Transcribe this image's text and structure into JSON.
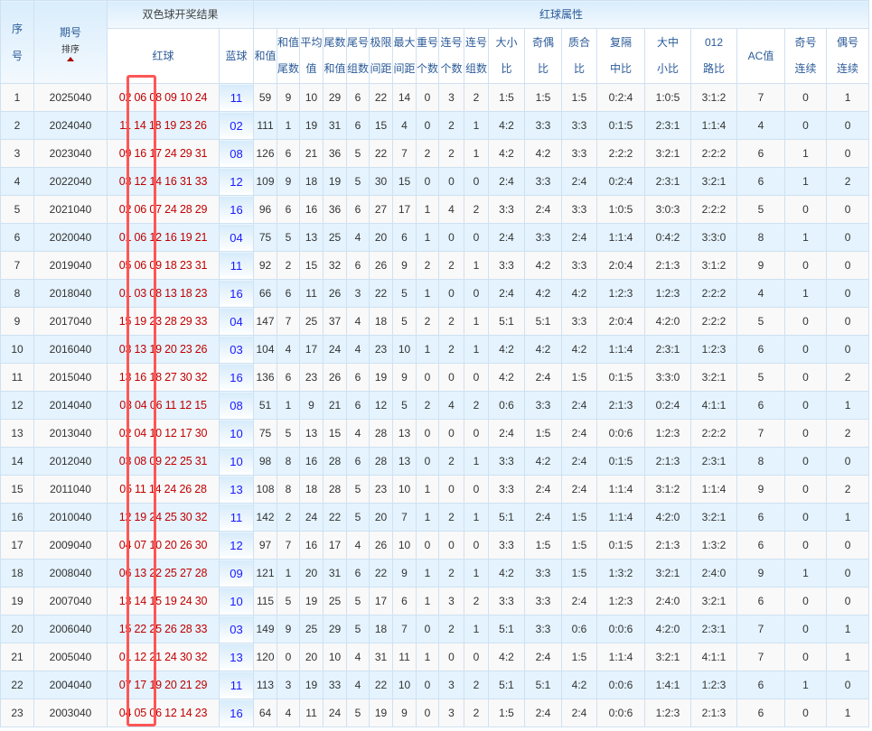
{
  "header": {
    "seq_line1": "序",
    "seq_line2": "号",
    "issue": "期号",
    "sort": "排序",
    "draw_result": "双色球开奖结果",
    "red_attr": "红球属性",
    "red_ball": "红球",
    "blue_ball": "蓝球",
    "sum": "和值",
    "cols": [
      [
        "和值",
        "尾数"
      ],
      [
        "平均",
        "值"
      ],
      [
        "尾数",
        "和值"
      ],
      [
        "尾号",
        "组数"
      ],
      [
        "极限",
        "间距"
      ],
      [
        "最大",
        "间距"
      ],
      [
        "重号",
        "个数"
      ],
      [
        "连号",
        "个数"
      ],
      [
        "连号",
        "组数"
      ],
      [
        "大小",
        "比"
      ],
      [
        "奇偶",
        "比"
      ],
      [
        "质合",
        "比"
      ],
      [
        "复隔",
        "中比"
      ],
      [
        "大中",
        "小比"
      ],
      [
        "012",
        "路比"
      ],
      [
        "AC值",
        ""
      ],
      [
        "奇号",
        "连续"
      ],
      [
        "偶号",
        "连续"
      ]
    ]
  },
  "colors": {
    "red_ball": "#c00000",
    "blue_ball": "#1a1aff",
    "highlight": "#ff5656",
    "stripe": "#e4f3fd"
  },
  "rows": [
    {
      "n": "1",
      "issue": "2025040",
      "red": [
        "02",
        "06",
        "08",
        "09",
        "10",
        "24"
      ],
      "blue": "11",
      "v": [
        "59",
        "9",
        "10",
        "29",
        "6",
        "22",
        "14",
        "0",
        "3",
        "2",
        "1:5",
        "1:5",
        "1:5",
        "0:2:4",
        "1:0:5",
        "3:1:2",
        "7",
        "0",
        "1"
      ]
    },
    {
      "n": "2",
      "issue": "2024040",
      "red": [
        "11",
        "14",
        "18",
        "19",
        "23",
        "26"
      ],
      "blue": "02",
      "v": [
        "111",
        "1",
        "19",
        "31",
        "6",
        "15",
        "4",
        "0",
        "2",
        "1",
        "4:2",
        "3:3",
        "3:3",
        "0:1:5",
        "2:3:1",
        "1:1:4",
        "4",
        "0",
        "0"
      ]
    },
    {
      "n": "3",
      "issue": "2023040",
      "red": [
        "09",
        "16",
        "17",
        "24",
        "29",
        "31"
      ],
      "blue": "08",
      "v": [
        "126",
        "6",
        "21",
        "36",
        "5",
        "22",
        "7",
        "2",
        "2",
        "1",
        "4:2",
        "4:2",
        "3:3",
        "2:2:2",
        "3:2:1",
        "2:2:2",
        "6",
        "1",
        "0"
      ]
    },
    {
      "n": "4",
      "issue": "2022040",
      "red": [
        "03",
        "12",
        "14",
        "16",
        "31",
        "33"
      ],
      "blue": "12",
      "v": [
        "109",
        "9",
        "18",
        "19",
        "5",
        "30",
        "15",
        "0",
        "0",
        "0",
        "2:4",
        "3:3",
        "2:4",
        "0:2:4",
        "2:3:1",
        "3:2:1",
        "6",
        "1",
        "2"
      ]
    },
    {
      "n": "5",
      "issue": "2021040",
      "red": [
        "02",
        "06",
        "07",
        "24",
        "28",
        "29"
      ],
      "blue": "16",
      "v": [
        "96",
        "6",
        "16",
        "36",
        "6",
        "27",
        "17",
        "1",
        "4",
        "2",
        "3:3",
        "2:4",
        "3:3",
        "1:0:5",
        "3:0:3",
        "2:2:2",
        "5",
        "0",
        "0"
      ]
    },
    {
      "n": "6",
      "issue": "2020040",
      "red": [
        "01",
        "06",
        "12",
        "16",
        "19",
        "21"
      ],
      "blue": "04",
      "v": [
        "75",
        "5",
        "13",
        "25",
        "4",
        "20",
        "6",
        "1",
        "0",
        "0",
        "2:4",
        "3:3",
        "2:4",
        "1:1:4",
        "0:4:2",
        "3:3:0",
        "8",
        "1",
        "0"
      ]
    },
    {
      "n": "7",
      "issue": "2019040",
      "red": [
        "05",
        "06",
        "09",
        "18",
        "23",
        "31"
      ],
      "blue": "11",
      "v": [
        "92",
        "2",
        "15",
        "32",
        "6",
        "26",
        "9",
        "2",
        "2",
        "1",
        "3:3",
        "4:2",
        "3:3",
        "2:0:4",
        "2:1:3",
        "3:1:2",
        "9",
        "0",
        "0"
      ]
    },
    {
      "n": "8",
      "issue": "2018040",
      "red": [
        "01",
        "03",
        "08",
        "13",
        "18",
        "23"
      ],
      "blue": "16",
      "v": [
        "66",
        "6",
        "11",
        "26",
        "3",
        "22",
        "5",
        "1",
        "0",
        "0",
        "2:4",
        "4:2",
        "4:2",
        "1:2:3",
        "1:2:3",
        "2:2:2",
        "4",
        "1",
        "0"
      ]
    },
    {
      "n": "9",
      "issue": "2017040",
      "red": [
        "15",
        "19",
        "23",
        "28",
        "29",
        "33"
      ],
      "blue": "04",
      "v": [
        "147",
        "7",
        "25",
        "37",
        "4",
        "18",
        "5",
        "2",
        "2",
        "1",
        "5:1",
        "5:1",
        "3:3",
        "2:0:4",
        "4:2:0",
        "2:2:2",
        "5",
        "0",
        "0"
      ]
    },
    {
      "n": "10",
      "issue": "2016040",
      "red": [
        "03",
        "13",
        "19",
        "20",
        "23",
        "26"
      ],
      "blue": "03",
      "v": [
        "104",
        "4",
        "17",
        "24",
        "4",
        "23",
        "10",
        "1",
        "2",
        "1",
        "4:2",
        "4:2",
        "4:2",
        "1:1:4",
        "2:3:1",
        "1:2:3",
        "6",
        "0",
        "0"
      ]
    },
    {
      "n": "11",
      "issue": "2015040",
      "red": [
        "13",
        "16",
        "18",
        "27",
        "30",
        "32"
      ],
      "blue": "16",
      "v": [
        "136",
        "6",
        "23",
        "26",
        "6",
        "19",
        "9",
        "0",
        "0",
        "0",
        "4:2",
        "2:4",
        "1:5",
        "0:1:5",
        "3:3:0",
        "3:2:1",
        "5",
        "0",
        "2"
      ]
    },
    {
      "n": "12",
      "issue": "2014040",
      "red": [
        "03",
        "04",
        "06",
        "11",
        "12",
        "15"
      ],
      "blue": "08",
      "v": [
        "51",
        "1",
        "9",
        "21",
        "6",
        "12",
        "5",
        "2",
        "4",
        "2",
        "0:6",
        "3:3",
        "2:4",
        "2:1:3",
        "0:2:4",
        "4:1:1",
        "6",
        "0",
        "1"
      ]
    },
    {
      "n": "13",
      "issue": "2013040",
      "red": [
        "02",
        "04",
        "10",
        "12",
        "17",
        "30"
      ],
      "blue": "10",
      "v": [
        "75",
        "5",
        "13",
        "15",
        "4",
        "28",
        "13",
        "0",
        "0",
        "0",
        "2:4",
        "1:5",
        "2:4",
        "0:0:6",
        "1:2:3",
        "2:2:2",
        "7",
        "0",
        "2"
      ]
    },
    {
      "n": "14",
      "issue": "2012040",
      "red": [
        "03",
        "08",
        "09",
        "22",
        "25",
        "31"
      ],
      "blue": "10",
      "v": [
        "98",
        "8",
        "16",
        "28",
        "6",
        "28",
        "13",
        "0",
        "2",
        "1",
        "3:3",
        "4:2",
        "2:4",
        "0:1:5",
        "2:1:3",
        "2:3:1",
        "8",
        "0",
        "0"
      ]
    },
    {
      "n": "15",
      "issue": "2011040",
      "red": [
        "05",
        "11",
        "14",
        "24",
        "26",
        "28"
      ],
      "blue": "13",
      "v": [
        "108",
        "8",
        "18",
        "28",
        "5",
        "23",
        "10",
        "1",
        "0",
        "0",
        "3:3",
        "2:4",
        "2:4",
        "1:1:4",
        "3:1:2",
        "1:1:4",
        "9",
        "0",
        "2"
      ]
    },
    {
      "n": "16",
      "issue": "2010040",
      "red": [
        "12",
        "19",
        "24",
        "25",
        "30",
        "32"
      ],
      "blue": "11",
      "v": [
        "142",
        "2",
        "24",
        "22",
        "5",
        "20",
        "7",
        "1",
        "2",
        "1",
        "5:1",
        "2:4",
        "1:5",
        "1:1:4",
        "4:2:0",
        "3:2:1",
        "6",
        "0",
        "1"
      ]
    },
    {
      "n": "17",
      "issue": "2009040",
      "red": [
        "04",
        "07",
        "10",
        "20",
        "26",
        "30"
      ],
      "blue": "12",
      "v": [
        "97",
        "7",
        "16",
        "17",
        "4",
        "26",
        "10",
        "0",
        "0",
        "0",
        "3:3",
        "1:5",
        "1:5",
        "0:1:5",
        "2:1:3",
        "1:3:2",
        "6",
        "0",
        "0"
      ]
    },
    {
      "n": "18",
      "issue": "2008040",
      "red": [
        "06",
        "13",
        "22",
        "25",
        "27",
        "28"
      ],
      "blue": "09",
      "v": [
        "121",
        "1",
        "20",
        "31",
        "6",
        "22",
        "9",
        "1",
        "2",
        "1",
        "4:2",
        "3:3",
        "1:5",
        "1:3:2",
        "3:2:1",
        "2:4:0",
        "9",
        "1",
        "0"
      ]
    },
    {
      "n": "19",
      "issue": "2007040",
      "red": [
        "13",
        "14",
        "15",
        "19",
        "24",
        "30"
      ],
      "blue": "10",
      "v": [
        "115",
        "5",
        "19",
        "25",
        "5",
        "17",
        "6",
        "1",
        "3",
        "2",
        "3:3",
        "3:3",
        "2:4",
        "1:2:3",
        "2:4:0",
        "3:2:1",
        "6",
        "0",
        "0"
      ]
    },
    {
      "n": "20",
      "issue": "2006040",
      "red": [
        "15",
        "22",
        "25",
        "26",
        "28",
        "33"
      ],
      "blue": "03",
      "v": [
        "149",
        "9",
        "25",
        "29",
        "5",
        "18",
        "7",
        "0",
        "2",
        "1",
        "5:1",
        "3:3",
        "0:6",
        "0:0:6",
        "4:2:0",
        "2:3:1",
        "7",
        "0",
        "1"
      ]
    },
    {
      "n": "21",
      "issue": "2005040",
      "red": [
        "01",
        "12",
        "21",
        "24",
        "30",
        "32"
      ],
      "blue": "13",
      "v": [
        "120",
        "0",
        "20",
        "10",
        "4",
        "31",
        "11",
        "1",
        "0",
        "0",
        "4:2",
        "2:4",
        "1:5",
        "1:1:4",
        "3:2:1",
        "4:1:1",
        "7",
        "0",
        "1"
      ]
    },
    {
      "n": "22",
      "issue": "2004040",
      "red": [
        "07",
        "17",
        "19",
        "20",
        "21",
        "29"
      ],
      "blue": "11",
      "v": [
        "113",
        "3",
        "19",
        "33",
        "4",
        "22",
        "10",
        "0",
        "3",
        "2",
        "5:1",
        "5:1",
        "4:2",
        "0:0:6",
        "1:4:1",
        "1:2:3",
        "6",
        "1",
        "0"
      ]
    },
    {
      "n": "23",
      "issue": "2003040",
      "red": [
        "04",
        "05",
        "06",
        "12",
        "14",
        "23"
      ],
      "blue": "16",
      "v": [
        "64",
        "4",
        "11",
        "24",
        "5",
        "19",
        "9",
        "0",
        "3",
        "2",
        "1:5",
        "2:4",
        "2:4",
        "0:0:6",
        "1:2:3",
        "2:1:3",
        "6",
        "0",
        "1"
      ]
    }
  ]
}
